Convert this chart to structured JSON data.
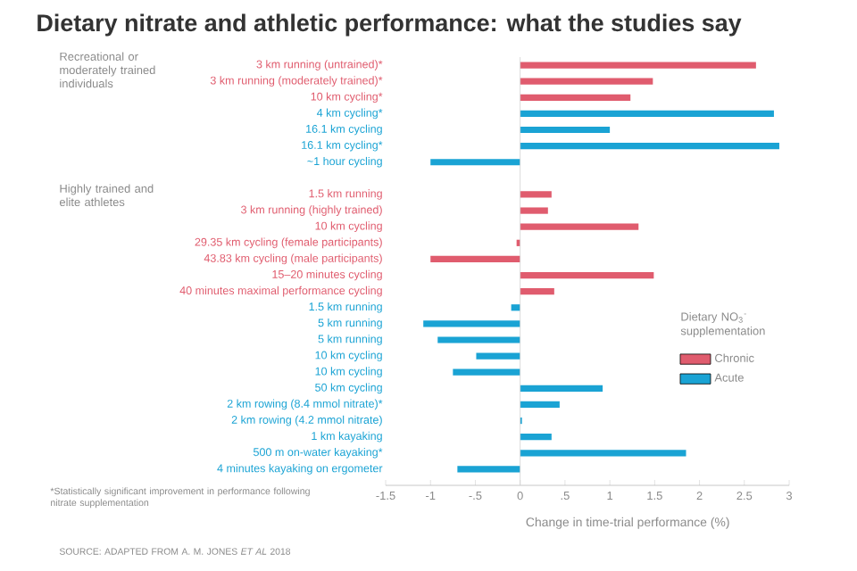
{
  "chart_data": {
    "type": "bar",
    "orientation": "horizontal",
    "title": "Dietary nitrate and athletic performance: what the studies say",
    "xlabel": "Change in time-trial performance (%)",
    "legend_title": "Dietary NO$_{3}$$^{-}$ supplementation",
    "categories": [
      "3 km running (untrained)*",
      "3 km running (moderately trained)*",
      "10 km cycling*",
      "4 km cycling*",
      "16.1 km cycling",
      "16.1 km cycling*",
      "~1 hour cycling",
      null,
      "1.5 km running",
      "3 km running (highly trained)",
      "10 km cycling",
      "29.35 km cycling (female participants)",
      "43.83 km cycling (male participants)",
      "15–20 minutes cycling",
      "40 minutes maximal performance cycling",
      "1.5 km running",
      "5 km running",
      "5 km running",
      "10 km cycling",
      "10 km cycling",
      "50 km cycling",
      "2 km rowing (8.4 mmol nitrate)*",
      "2 km rowing (4.2 mmol nitrate)",
      "1 km kayaking",
      "500 m on-water kayaking*",
      "4 minutes kayaking on ergometer"
    ],
    "series": [
      {
        "name": "Chronic",
        "color": "#e05c6e",
        "values": [
          2.63,
          1.48,
          1.23,
          null,
          null,
          null,
          null,
          null,
          0.35,
          0.31,
          1.32,
          -0.04,
          -1.0,
          1.49,
          0.38,
          null,
          null,
          null,
          null,
          null,
          null,
          null,
          null,
          null,
          null,
          null
        ]
      },
      {
        "name": "Acute",
        "color": "#1aa3d4",
        "values": [
          null,
          null,
          null,
          2.83,
          1.0,
          2.89,
          -1.0,
          null,
          null,
          null,
          null,
          null,
          null,
          null,
          null,
          -0.1,
          -1.08,
          -0.92,
          -0.49,
          -0.75,
          0.92,
          0.44,
          0.02,
          0.35,
          1.85,
          -0.7
        ]
      }
    ],
    "xlim": [
      -1.5,
      3
    ],
    "xticks": [
      -1.5,
      -1,
      {
        "value": -0.5,
        "label": "-.5"
      },
      0,
      {
        "value": 0.5,
        "label": ".5"
      },
      1,
      1.5,
      2,
      2.5,
      3
    ],
    "legend": "right",
    "annotations": [
      "Recreational or moderately trained individuals",
      "Highly trained and elite athletes",
      "*Statistically significant improvement in performance following nitrate supplementation",
      "SOURCE: ADAPTED FROM A. M. JONES *ET AL* 2018"
    ]
  }
}
